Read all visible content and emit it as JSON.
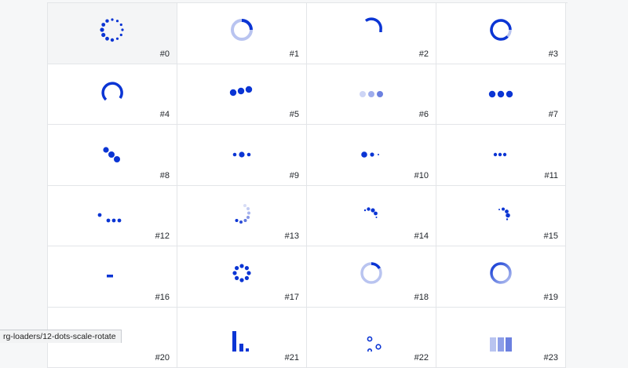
{
  "accent": "#0b35d4",
  "accent_light": "#b9c4f0",
  "loaders": [
    {
      "label": "#0",
      "icon": "dots-circle-icon"
    },
    {
      "label": "#1",
      "icon": "ring-track-arc-icon"
    },
    {
      "label": "#2",
      "icon": "arc-quarter-icon"
    },
    {
      "label": "#3",
      "icon": "ring-track-large-arc-icon"
    },
    {
      "label": "#4",
      "icon": "arc-three-quarter-icon"
    },
    {
      "label": "#5",
      "icon": "three-dots-rising-icon"
    },
    {
      "label": "#6",
      "icon": "three-dots-fade-icon"
    },
    {
      "label": "#7",
      "icon": "three-dots-icon"
    },
    {
      "label": "#8",
      "icon": "three-dots-diagonal-icon"
    },
    {
      "label": "#9",
      "icon": "three-dots-pulse-icon"
    },
    {
      "label": "#10",
      "icon": "three-dots-shrink-icon"
    },
    {
      "label": "#11",
      "icon": "three-dots-small-icon"
    },
    {
      "label": "#12",
      "icon": "four-dots-bounce-icon"
    },
    {
      "label": "#13",
      "icon": "dots-arc-fade-icon"
    },
    {
      "label": "#14",
      "icon": "dots-arc-top-icon"
    },
    {
      "label": "#15",
      "icon": "dots-arc-right-icon"
    },
    {
      "label": "#16",
      "icon": "dash-icon"
    },
    {
      "label": "#17",
      "icon": "eight-dots-ring-icon"
    },
    {
      "label": "#18",
      "icon": "ring-short-arc-icon"
    },
    {
      "label": "#19",
      "icon": "ring-gradient-icon"
    },
    {
      "label": "#20",
      "icon": "arc-small-icon"
    },
    {
      "label": "#21",
      "icon": "bars-equalizer-icon"
    },
    {
      "label": "#22",
      "icon": "rings-bubbles-icon"
    },
    {
      "label": "#23",
      "icon": "three-bars-icon"
    }
  ],
  "status_bar": {
    "url": "rg-loaders/12-dots-scale-rotate"
  }
}
